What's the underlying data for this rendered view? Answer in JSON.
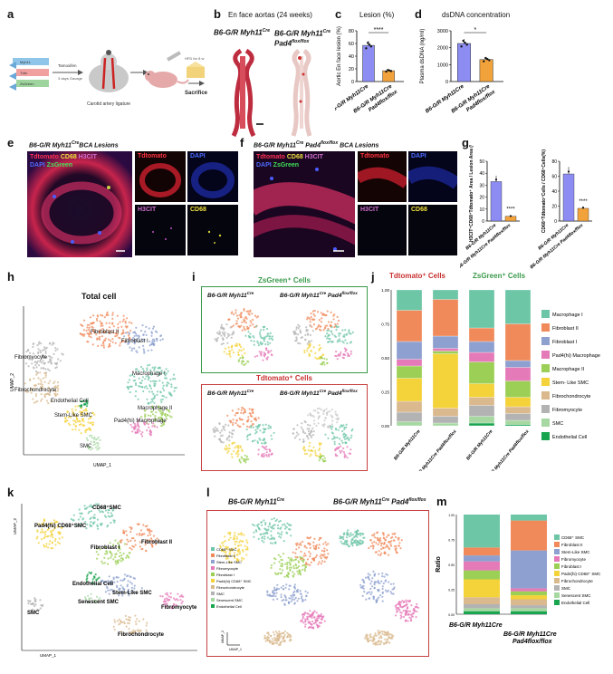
{
  "panels": {
    "a": {
      "letter": "a",
      "left_labels": [
        "Myh11",
        "Tdto",
        "ZsGreen"
      ],
      "step_tamoxifen": "Tamoxifen",
      "step_days": "3 days Gavage",
      "step_surgery": "Carotid artery ligature",
      "step_hfd": "HFD for 8 w",
      "step_sacrifice": "Sacrifice"
    },
    "b": {
      "letter": "b",
      "title": "En face aortas (24 weeks)",
      "left_genotype": "B6-G/R Myh11",
      "left_sup": "Cre",
      "right_genotype_line1": "B6-G/R Myh11",
      "right_sup1": "Cre",
      "right_genotype_line2": "Pad4",
      "right_sup2": "flox/flox"
    },
    "c": {
      "letter": "c",
      "title": "Lesion (%)",
      "ylabel": "Aortic En face lesion (%)",
      "sig": "****",
      "xt1": "B6-G/R Myh11",
      "xt1_sup": "Cre",
      "xt2a": "B6-G/R Myh11",
      "xt2a_sup": "Cre",
      "xt2b": "Pad4",
      "xt2b_sup": "flox/flox"
    },
    "d": {
      "letter": "d",
      "title": "dsDNA concentration",
      "ylabel": "Plasma dsDNA (ng/ml)",
      "sig": "*",
      "xt1": "B6-G/R Myh11",
      "xt1_sup": "Cre",
      "xt2a": "B6-G/R Myh11",
      "xt2a_sup": "Cre",
      "xt2b": "Pad4",
      "xt2b_sup": "flox/flox"
    },
    "e": {
      "letter": "e",
      "title_geno": "B6-G/R Myh11",
      "title_sup": "Cre",
      "title_rest": "BCA Lesions",
      "merge_l1": [
        "Tdtomato",
        " CD68",
        " H3CIT"
      ],
      "merge_l2": [
        "DAPI",
        " ZsGreen"
      ],
      "ch_tdtomato": "Tdtomato",
      "ch_dapi": "DAPI",
      "ch_h3cit": "H3CIT",
      "ch_cd68": "CD68"
    },
    "f": {
      "letter": "f",
      "title_geno": "B6-G/R Myh11",
      "title_sup": "Cre",
      "title_geno2": " Pad4",
      "title_sup2": "flox/flox",
      "title_rest": " BCA Lesions",
      "merge_l1": [
        "Tdtomato",
        " CD68",
        " H3CIT"
      ],
      "merge_l2": [
        "DAPI",
        " ZsGreen"
      ],
      "ch_tdtomato": "Tdtomato",
      "ch_dapi": "DAPI",
      "ch_h3cit": "H3CIT",
      "ch_cd68": "CD68"
    },
    "g": {
      "letter": "g",
      "ylabel1": "H3CIT⁺CD68⁺Tdtomato⁺ Area / Lesion Area (%)",
      "ylabel2": "CD68⁺Tdtomato⁺Cells / CD68⁺Cells(%)",
      "sig1": "****",
      "sig2": "****"
    },
    "h": {
      "letter": "h",
      "title": "Total cell",
      "xlabel": "UMAP_1",
      "ylabel": "UMAP_2",
      "clusters": [
        "Fibroblast II",
        "Fibroblast I",
        "Fibromyocyte",
        "Macrophage I",
        "Macrophage II",
        "Fibrochondrocyte",
        "Endothelial Cell",
        "Pad4(hi) Macrophage",
        "Stem-Like SMC",
        "SMC"
      ]
    },
    "i": {
      "letter": "i",
      "zs_title": "ZsGreen⁺ Cells",
      "td_title": "Tdtomato⁺ Cells",
      "g1": "B6-G/R Myh11",
      "g1_sup": "Cre",
      "g2": "B6-G/R Myh11",
      "g2_sup": "Cre",
      "g2b": "Pad4",
      "g2b_sup": "flox/flox"
    },
    "j": {
      "letter": "j",
      "hdr_td": "Tdtomato⁺ Cells",
      "hdr_zs": "ZsGreen⁺ Cells",
      "legend": [
        "Macrophage I",
        "Fibroblast II",
        "Fibroblast I",
        "Pad4(hi) Macrophage",
        "Macrophage II",
        "Stem- Like SMC",
        "Fibrochondrocyte",
        "Fibromyocyte",
        "SMC",
        "Endothelial Cell"
      ],
      "colors": [
        "#6dc6a5",
        "#f08a5b",
        "#8ea0cf",
        "#e57ab8",
        "#9bcf55",
        "#f4d23a",
        "#dab98f",
        "#b3b3b3",
        "#a7d8a2",
        "#19a54f"
      ],
      "yticks": [
        "1.00",
        "0.75",
        "0.50",
        "0.25",
        "0.00"
      ],
      "xticks": [
        "B6-G/R Myh11Cre",
        "B6-G/R Myh11Cre Pad4flox/flox",
        "B6-G/R Myh11Cre",
        "B6-G/R Myh11Cre Pad4flox/flox"
      ]
    },
    "k": {
      "letter": "k",
      "xlabel": "UMAP_1",
      "ylabel": "UMAP_2",
      "clusters": [
        "Pad4(hi) CD68⁺SMC",
        "CD68⁺SMC",
        "Fibroblast I",
        "Fibroblast II",
        "Endothelial Cell",
        "Stem-Like SMC",
        "SMC",
        "Senescent SMC",
        "Fibromyocyte",
        "Fibrochondrocyte"
      ]
    },
    "l": {
      "letter": "l",
      "g1": "B6-G/R Myh11",
      "g1_sup": "Cre",
      "g2": "B6-G/R Myh11",
      "g2_sup": "Cre",
      "g2b": " Pad4",
      "g2b_sup": "flox/flox",
      "legend": [
        "CD68⁺ SMC",
        "Fibroblast II",
        "Stem-Like SMC",
        "Fibromyocyte",
        "Fibroblast I",
        "Pad4(hi) CD68⁺ SMC",
        "Fibrochondrocyte",
        "SMC",
        "Senescent SMC",
        "Endothelial Cell"
      ],
      "xaxis": "UMAP_1",
      "yaxis": "UMAP_2"
    },
    "m": {
      "letter": "m",
      "ylabel": "Ratio",
      "legend": [
        "CD68⁺ SMC",
        "Fibroblast II",
        "Stem-Like SMC",
        "Fibromyocyte",
        "Fibroblast I",
        "Pad4(hi) CD68⁺ SMC",
        "Fibrochondrocyte",
        "SMC",
        "Senescent SMC",
        "Endothelial Cell"
      ],
      "colors": [
        "#6dc6a5",
        "#f08a5b",
        "#8ea0cf",
        "#e57ab8",
        "#9bcf55",
        "#f4d23a",
        "#dab98f",
        "#b3b3b3",
        "#a7d8a2",
        "#19a54f"
      ],
      "yticks": [
        "1.00",
        "0.75",
        "0.50",
        "0.25",
        "0.00"
      ],
      "x1": "B6-G/R Myh11",
      "x1_sup": "Cre",
      "x2a": "B6-G/R Myh11",
      "x2a_sup": "Cre",
      "x2b": "Pad4",
      "x2b_sup": "flox/flox"
    }
  },
  "chart_data": [
    {
      "type": "bar",
      "title": "Lesion (%)",
      "ylabel": "Aortic En face lesion (%)",
      "categories": [
        "B6-G/R Myh11Cre",
        "B6-G/R Myh11Cre Pad4flox/flox"
      ],
      "values": [
        57,
        17
      ],
      "ylim": [
        0,
        80
      ],
      "yticks": [
        0,
        20,
        40,
        60,
        80
      ],
      "color": [
        "#8c8cf2",
        "#f2a23a"
      ],
      "sig": "****"
    },
    {
      "type": "bar",
      "title": "dsDNA concentration",
      "ylabel": "Plasma dsDNA (ng/ml)",
      "categories": [
        "B6-G/R Myh11Cre",
        "B6-G/R Myh11Cre Pad4flox/flox"
      ],
      "values": [
        2250,
        1300
      ],
      "ylim": [
        0,
        3000
      ],
      "yticks": [
        0,
        1000,
        2000,
        3000
      ],
      "color": [
        "#8c8cf2",
        "#f2a23a"
      ],
      "sig": "*"
    },
    {
      "type": "bar",
      "ylabel": "H3CIT⁺CD68⁺Tdtomato⁺ Area / Lesion Area (%)",
      "categories": [
        "B6-G/R Myh11Cre",
        "B6-G/R Myh11Cre Pad4flox/flox"
      ],
      "values": [
        33,
        4
      ],
      "ylim": [
        0,
        50
      ],
      "yticks": [
        0,
        10,
        20,
        30,
        40,
        50
      ],
      "sig": "****"
    },
    {
      "type": "bar",
      "ylabel": "CD68⁺Tdtomato⁺Cells / CD68⁺Cells(%)",
      "categories": [
        "B6-G/R Myh11Cre",
        "B6-G/R Myh11Cre Pad4flox/flox"
      ],
      "values": [
        63,
        17
      ],
      "ylim": [
        0,
        80
      ],
      "yticks": [
        0,
        20,
        40,
        60,
        80
      ],
      "sig": "****"
    },
    {
      "type": "bar",
      "stacked": true,
      "categories": [
        "Tdtomato⁺ Myh11Cre",
        "Tdtomato⁺ Myh11Cre Pad4flox/flox",
        "ZsGreen⁺ Myh11Cre",
        "ZsGreen⁺ Myh11Cre Pad4flox/flox"
      ],
      "series": [
        {
          "name": "Endothelial Cell",
          "values": [
            0.0,
            0.0,
            0.02,
            0.01
          ]
        },
        {
          "name": "SMC",
          "values": [
            0.03,
            0.02,
            0.05,
            0.03
          ]
        },
        {
          "name": "Fibromyocyte",
          "values": [
            0.07,
            0.05,
            0.08,
            0.05
          ]
        },
        {
          "name": "Fibrochondrocyte",
          "values": [
            0.08,
            0.06,
            0.06,
            0.05
          ]
        },
        {
          "name": "Stem- Like SMC",
          "values": [
            0.17,
            0.4,
            0.1,
            0.07
          ]
        },
        {
          "name": "Macrophage II",
          "values": [
            0.09,
            0.02,
            0.16,
            0.12
          ]
        },
        {
          "name": "Pad4(hi) Macrophage",
          "values": [
            0.05,
            0.02,
            0.07,
            0.1
          ]
        },
        {
          "name": "Fibroblast I",
          "values": [
            0.13,
            0.09,
            0.08,
            0.05
          ]
        },
        {
          "name": "Fibroblast II",
          "values": [
            0.23,
            0.27,
            0.1,
            0.27
          ]
        },
        {
          "name": "Macrophage I",
          "values": [
            0.15,
            0.07,
            0.28,
            0.25
          ]
        }
      ]
    },
    {
      "type": "bar",
      "stacked": true,
      "ylabel": "Ratio",
      "categories": [
        "B6-G/R Myh11Cre",
        "B6-G/R Myh11Cre Pad4flox/flox"
      ],
      "series": [
        {
          "name": "Endothelial Cell",
          "values": [
            0.03,
            0.03
          ]
        },
        {
          "name": "Senescent SMC",
          "values": [
            0.03,
            0.03
          ]
        },
        {
          "name": "SMC",
          "values": [
            0.04,
            0.03
          ]
        },
        {
          "name": "Fibrochondrocyte",
          "values": [
            0.07,
            0.06
          ]
        },
        {
          "name": "Pad4(hi) CD68⁺ SMC",
          "values": [
            0.18,
            0.04
          ]
        },
        {
          "name": "Fibroblast I",
          "values": [
            0.09,
            0.04
          ]
        },
        {
          "name": "Fibromyocyte",
          "values": [
            0.09,
            0.03
          ]
        },
        {
          "name": "Stem-Like SMC",
          "values": [
            0.06,
            0.38
          ]
        },
        {
          "name": "Fibroblast II",
          "values": [
            0.08,
            0.3
          ]
        },
        {
          "name": "CD68⁺ SMC",
          "values": [
            0.33,
            0.06
          ]
        }
      ]
    }
  ]
}
